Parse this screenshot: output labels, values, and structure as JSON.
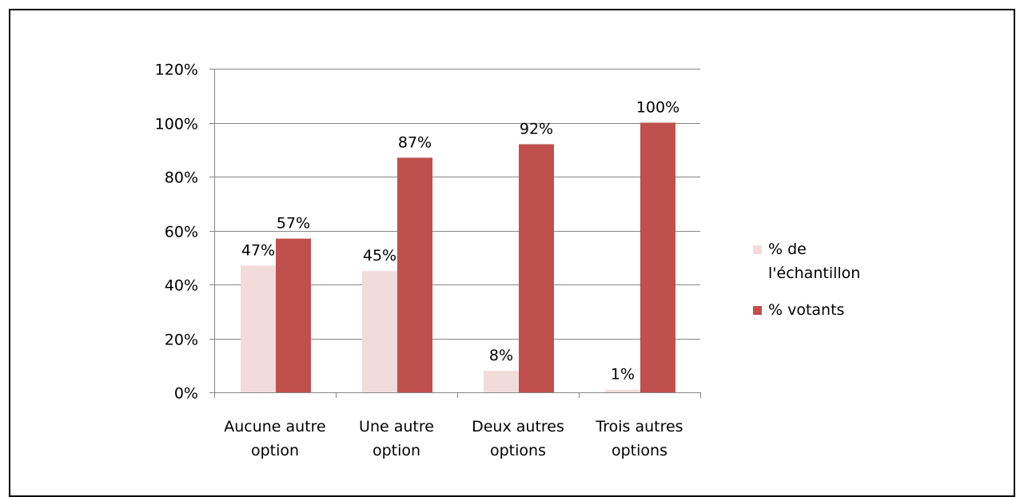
{
  "chart_data": {
    "type": "bar",
    "title": "",
    "xlabel": "",
    "ylabel": "",
    "ylim": [
      0,
      120
    ],
    "yticks": [
      "0%",
      "20%",
      "40%",
      "60%",
      "80%",
      "100%",
      "120%"
    ],
    "ytick_values": [
      0,
      20,
      40,
      60,
      80,
      100,
      120
    ],
    "categories": [
      [
        "Aucune autre",
        "option"
      ],
      [
        "Une autre",
        "option"
      ],
      [
        "Deux autres",
        "options"
      ],
      [
        "Trois autres",
        "options"
      ]
    ],
    "series": [
      {
        "name": "% de l'échantillon",
        "legend_lines": [
          "% de",
          "l'échantillon"
        ],
        "values": [
          47,
          45,
          8,
          1
        ],
        "labels": [
          "47%",
          "45%",
          "8%",
          "1%"
        ],
        "color": "#f2dcdb"
      },
      {
        "name": "% votants",
        "legend_lines": [
          "% votants"
        ],
        "values": [
          57,
          87,
          92,
          100
        ],
        "labels": [
          "57%",
          "87%",
          "92%",
          "100%"
        ],
        "color": "#c0504d"
      }
    ],
    "grid": true,
    "legend_position": "right"
  }
}
